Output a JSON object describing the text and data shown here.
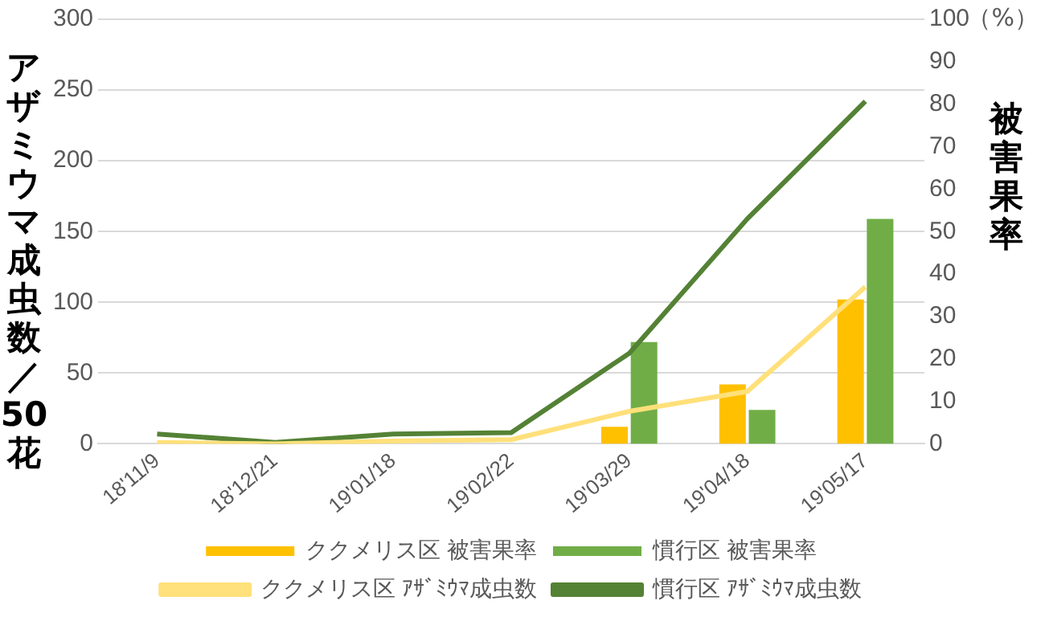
{
  "chart_data": {
    "type": "bar",
    "categories": [
      "18'11/9",
      "18'12/21",
      "19'01/18",
      "19'02/22",
      "19'03/29",
      "19'04/18",
      "19'05/17"
    ],
    "series": [
      {
        "name": "ククメリス区 被害果率",
        "axis": "y2",
        "color": "#ffc000",
        "values": [
          0,
          0,
          0,
          0,
          4,
          14,
          34
        ]
      },
      {
        "name": "慣行区 被害果率",
        "axis": "y2",
        "color": "#70ad47",
        "values": [
          0,
          0,
          0,
          0,
          24,
          8,
          53
        ]
      },
      {
        "name": "ククメリス区 ｱｻﾞﾐｳﾏ成虫数",
        "type": "line",
        "color": "#ffe07a",
        "values": [
          1,
          0,
          2,
          3,
          23,
          37,
          111
        ]
      },
      {
        "name": "慣行区 ｱｻﾞﾐｳﾏ成虫数",
        "type": "line",
        "color": "#548235",
        "values": [
          7,
          1,
          7,
          8,
          64,
          159,
          242
        ]
      }
    ],
    "ylabel": "アザミウマ成虫数／50花",
    "y2label": "被害果率",
    "annotations": [
      "（%）"
    ],
    "ylim": [
      0,
      300
    ],
    "yticks": [
      0,
      50,
      100,
      150,
      200,
      250,
      300
    ],
    "y2lim": [
      0,
      100
    ],
    "y2ticks": [
      0,
      10,
      20,
      30,
      40,
      50,
      60,
      70,
      80,
      90,
      100
    ],
    "grid": "y",
    "legend": "bottom",
    "marker": "none",
    "line_style": "solid"
  }
}
